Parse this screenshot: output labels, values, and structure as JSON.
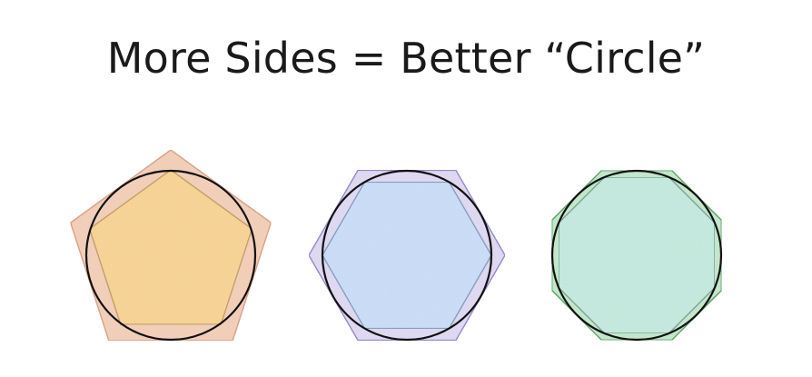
{
  "title": "More Sides = Better “Circle”",
  "figures": [
    {
      "name": "pentagon",
      "sides": 5,
      "outer_fill": "#f7d3bd",
      "outer_stroke": "#dba689",
      "inner_fill": "#fbd79a",
      "inner_stroke": "#c9a26e",
      "circle_stroke": "#111111"
    },
    {
      "name": "hexagon",
      "sides": 6,
      "outer_fill": "#e3ddf6",
      "outer_stroke": "#9a8cd0",
      "inner_fill": "#cfe1fb",
      "inner_stroke": "#8aa2c4",
      "circle_stroke": "#111111"
    },
    {
      "name": "octagon",
      "sides": 8,
      "outer_fill": "#c8ebcf",
      "outer_stroke": "#5ea86c",
      "inner_fill": "#c9ede2",
      "inner_stroke": "#7fa99a",
      "circle_stroke": "#111111"
    }
  ]
}
